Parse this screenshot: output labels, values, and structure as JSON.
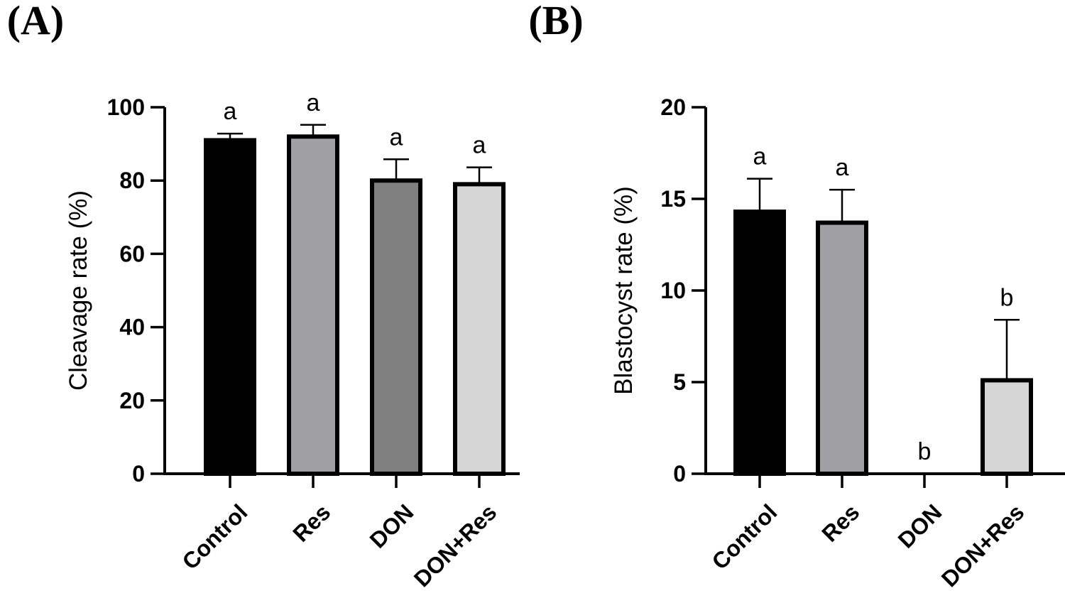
{
  "chart_data": [
    {
      "type": "bar",
      "panel_label": "(A)",
      "title": "",
      "xlabel": "",
      "ylabel": "Cleavage rate (%)",
      "ylim": [
        0,
        100
      ],
      "yticks": [
        0,
        20,
        40,
        60,
        80,
        100
      ],
      "categories": [
        "Control",
        "Res",
        "DON",
        "DON+Res"
      ],
      "values": [
        91,
        92,
        80,
        79
      ],
      "errors": [
        1.8,
        3.2,
        5.8,
        4.6
      ],
      "significance": [
        "a",
        "a",
        "a",
        "a"
      ],
      "colors": [
        "#000000",
        "#a0a0a4",
        "#808080",
        "#d6d6d6"
      ],
      "grid": false
    },
    {
      "type": "bar",
      "panel_label": "(B)",
      "title": "",
      "xlabel": "",
      "ylabel": "Blastocyst rate (%)",
      "ylim": [
        0,
        20
      ],
      "yticks": [
        0,
        5,
        10,
        15,
        20
      ],
      "categories": [
        "Control",
        "Res",
        "DON",
        "DON+Res"
      ],
      "values": [
        14.3,
        13.7,
        0,
        5.1
      ],
      "errors": [
        1.8,
        1.8,
        0,
        3.3
      ],
      "significance": [
        "a",
        "a",
        "b",
        "b"
      ],
      "colors": [
        "#000000",
        "#a0a0a4",
        "#808080",
        "#d6d6d6"
      ],
      "grid": false
    }
  ]
}
